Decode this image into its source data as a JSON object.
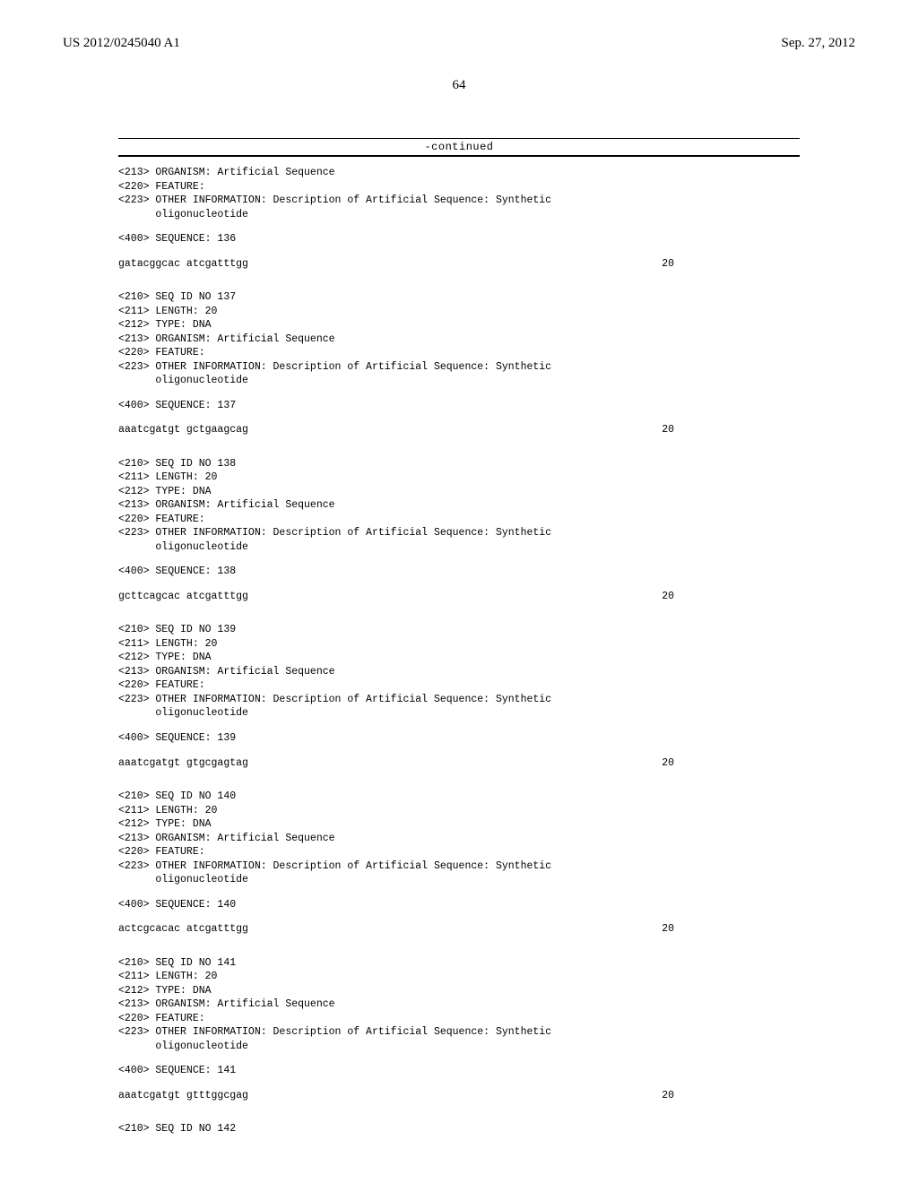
{
  "header": {
    "pub_number": "US 2012/0245040 A1",
    "pub_date": "Sep. 27, 2012"
  },
  "page_number": "64",
  "continued_label": "-continued",
  "blocks": [
    {
      "lines": [
        "<213> ORGANISM: Artificial Sequence",
        "<220> FEATURE:",
        "<223> OTHER INFORMATION: Description of Artificial Sequence: Synthetic",
        "      oligonucleotide"
      ],
      "seq_label": "<400> SEQUENCE: 136",
      "sequence": "gatacggcac atcgatttgg",
      "length": "20"
    },
    {
      "lines": [
        "<210> SEQ ID NO 137",
        "<211> LENGTH: 20",
        "<212> TYPE: DNA",
        "<213> ORGANISM: Artificial Sequence",
        "<220> FEATURE:",
        "<223> OTHER INFORMATION: Description of Artificial Sequence: Synthetic",
        "      oligonucleotide"
      ],
      "seq_label": "<400> SEQUENCE: 137",
      "sequence": "aaatcgatgt gctgaagcag",
      "length": "20"
    },
    {
      "lines": [
        "<210> SEQ ID NO 138",
        "<211> LENGTH: 20",
        "<212> TYPE: DNA",
        "<213> ORGANISM: Artificial Sequence",
        "<220> FEATURE:",
        "<223> OTHER INFORMATION: Description of Artificial Sequence: Synthetic",
        "      oligonucleotide"
      ],
      "seq_label": "<400> SEQUENCE: 138",
      "sequence": "gcttcagcac atcgatttgg",
      "length": "20"
    },
    {
      "lines": [
        "<210> SEQ ID NO 139",
        "<211> LENGTH: 20",
        "<212> TYPE: DNA",
        "<213> ORGANISM: Artificial Sequence",
        "<220> FEATURE:",
        "<223> OTHER INFORMATION: Description of Artificial Sequence: Synthetic",
        "      oligonucleotide"
      ],
      "seq_label": "<400> SEQUENCE: 139",
      "sequence": "aaatcgatgt gtgcgagtag",
      "length": "20"
    },
    {
      "lines": [
        "<210> SEQ ID NO 140",
        "<211> LENGTH: 20",
        "<212> TYPE: DNA",
        "<213> ORGANISM: Artificial Sequence",
        "<220> FEATURE:",
        "<223> OTHER INFORMATION: Description of Artificial Sequence: Synthetic",
        "      oligonucleotide"
      ],
      "seq_label": "<400> SEQUENCE: 140",
      "sequence": "actcgcacac atcgatttgg",
      "length": "20"
    },
    {
      "lines": [
        "<210> SEQ ID NO 141",
        "<211> LENGTH: 20",
        "<212> TYPE: DNA",
        "<213> ORGANISM: Artificial Sequence",
        "<220> FEATURE:",
        "<223> OTHER INFORMATION: Description of Artificial Sequence: Synthetic",
        "      oligonucleotide"
      ],
      "seq_label": "<400> SEQUENCE: 141",
      "sequence": "aaatcgatgt gtttggcgag",
      "length": "20"
    }
  ],
  "trailing_line": "<210> SEQ ID NO 142"
}
